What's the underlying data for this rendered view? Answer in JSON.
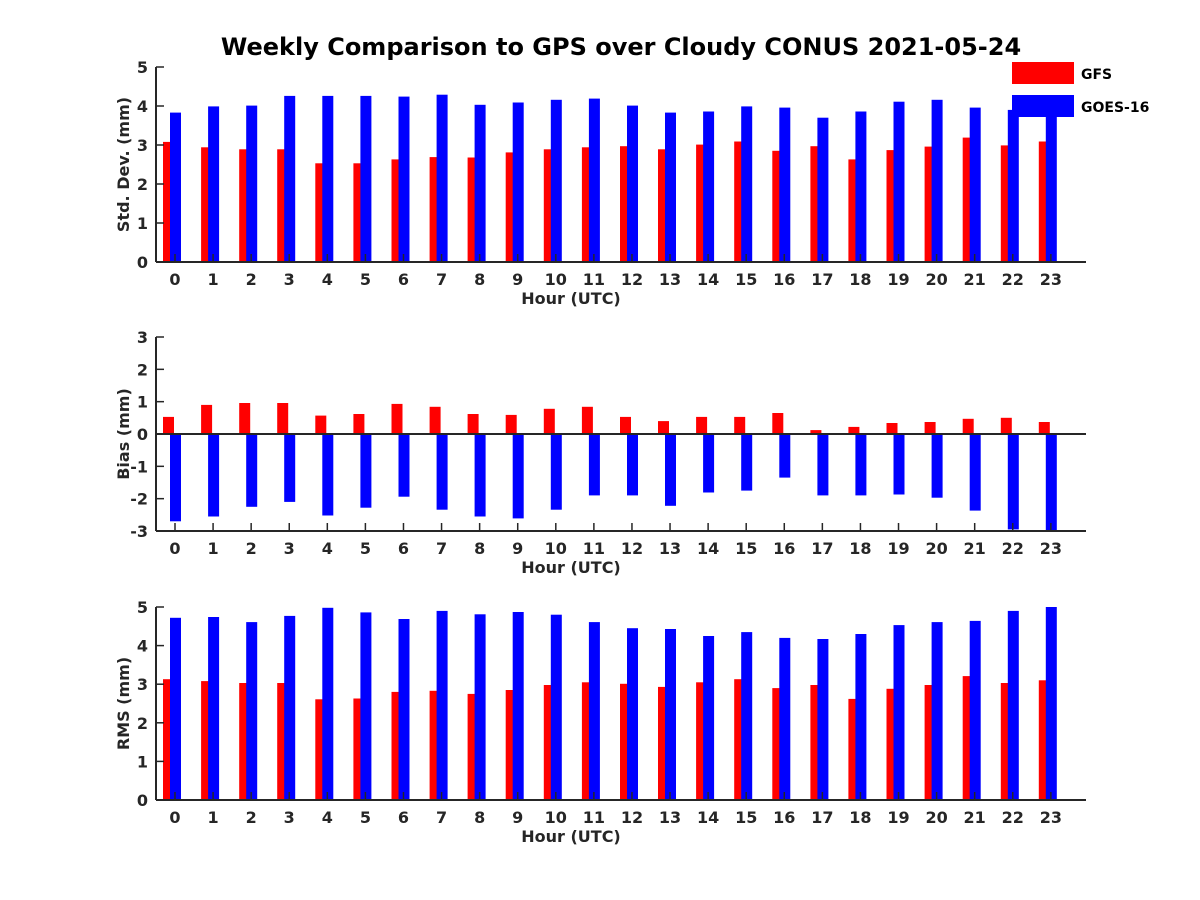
{
  "title": "Weekly Comparison to GPS over Cloudy CONUS 2021-05-24",
  "colors": {
    "GFS": "#ff0000",
    "GOES-16": "#0000ff",
    "axis": "#262626"
  },
  "legend": {
    "placement": "top-right",
    "entries": [
      "GFS",
      "GOES-16"
    ]
  },
  "chart_data": [
    {
      "type": "bar",
      "ylabel": "Std. Dev. (mm)",
      "xlabel": "Hour (UTC)",
      "ylim": [
        0,
        5
      ],
      "yticks": [
        0,
        1,
        2,
        3,
        4,
        5
      ],
      "categories": [
        "0",
        "1",
        "2",
        "3",
        "4",
        "5",
        "6",
        "7",
        "8",
        "9",
        "10",
        "11",
        "12",
        "13",
        "14",
        "15",
        "16",
        "17",
        "18",
        "19",
        "20",
        "21",
        "22",
        "23"
      ],
      "series": [
        {
          "name": "GFS",
          "values": [
            3.08,
            2.94,
            2.89,
            2.89,
            2.53,
            2.53,
            2.63,
            2.69,
            2.68,
            2.81,
            2.89,
            2.94,
            2.97,
            2.89,
            3.01,
            3.09,
            2.85,
            2.97,
            2.63,
            2.87,
            2.96,
            3.19,
            2.99,
            3.09
          ]
        },
        {
          "name": "GOES-16",
          "values": [
            3.83,
            3.99,
            4.01,
            4.26,
            4.26,
            4.26,
            4.24,
            4.29,
            4.03,
            4.09,
            4.16,
            4.19,
            4.01,
            3.83,
            3.86,
            3.99,
            3.96,
            3.7,
            3.86,
            4.11,
            4.16,
            3.96,
            3.9,
            3.88
          ]
        }
      ],
      "grid": false
    },
    {
      "type": "bar",
      "ylabel": "Bias (mm)",
      "xlabel": "Hour (UTC)",
      "ylim": [
        -3,
        3
      ],
      "yticks": [
        -3,
        -2,
        -1,
        0,
        1,
        2,
        3
      ],
      "categories": [
        "0",
        "1",
        "2",
        "3",
        "4",
        "5",
        "6",
        "7",
        "8",
        "9",
        "10",
        "11",
        "12",
        "13",
        "14",
        "15",
        "16",
        "17",
        "18",
        "19",
        "20",
        "21",
        "22",
        "23"
      ],
      "series": [
        {
          "name": "GFS",
          "values": [
            0.53,
            0.9,
            0.96,
            0.96,
            0.57,
            0.62,
            0.93,
            0.84,
            0.62,
            0.59,
            0.78,
            0.84,
            0.53,
            0.4,
            0.53,
            0.53,
            0.65,
            0.12,
            0.22,
            0.34,
            0.37,
            0.47,
            0.5,
            0.37
          ]
        },
        {
          "name": "GOES-16",
          "values": [
            -2.7,
            -2.55,
            -2.25,
            -2.1,
            -2.52,
            -2.28,
            -1.94,
            -2.34,
            -2.55,
            -2.61,
            -2.34,
            -1.9,
            -1.9,
            -2.22,
            -1.81,
            -1.75,
            -1.35,
            -1.9,
            -1.9,
            -1.87,
            -1.97,
            -2.37,
            -2.95,
            -3.0
          ]
        }
      ],
      "grid": false
    },
    {
      "type": "bar",
      "ylabel": "RMS (mm)",
      "xlabel": "Hour (UTC)",
      "ylim": [
        0,
        5
      ],
      "yticks": [
        0,
        1,
        2,
        3,
        4,
        5
      ],
      "categories": [
        "0",
        "1",
        "2",
        "3",
        "4",
        "5",
        "6",
        "7",
        "8",
        "9",
        "10",
        "11",
        "12",
        "13",
        "14",
        "15",
        "16",
        "17",
        "18",
        "19",
        "20",
        "21",
        "22",
        "23"
      ],
      "series": [
        {
          "name": "GFS",
          "values": [
            3.13,
            3.08,
            3.03,
            3.03,
            2.61,
            2.63,
            2.8,
            2.83,
            2.75,
            2.85,
            2.98,
            3.05,
            3.01,
            2.93,
            3.05,
            3.13,
            2.9,
            2.98,
            2.62,
            2.88,
            2.98,
            3.21,
            3.03,
            3.1
          ]
        },
        {
          "name": "GOES-16",
          "values": [
            4.72,
            4.74,
            4.61,
            4.77,
            4.98,
            4.86,
            4.69,
            4.9,
            4.81,
            4.87,
            4.8,
            4.61,
            4.45,
            4.43,
            4.25,
            4.35,
            4.2,
            4.17,
            4.3,
            4.53,
            4.61,
            4.64,
            4.9,
            5.0
          ]
        }
      ],
      "grid": false
    }
  ]
}
